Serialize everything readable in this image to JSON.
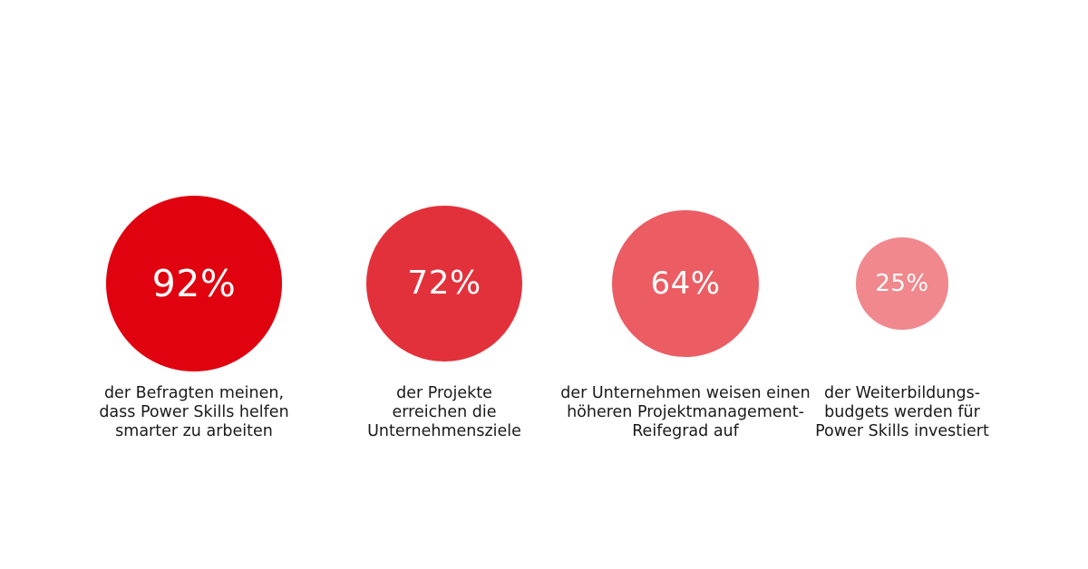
{
  "chart_data": {
    "type": "bubble",
    "unit": "%",
    "items": [
      {
        "value": 92,
        "label": "92%",
        "color": "#e0020f",
        "caption_lines": [
          "der Befragten meinen,",
          "dass Power Skills helfen",
          "smarter zu arbeiten"
        ]
      },
      {
        "value": 72,
        "label": "72%",
        "color": "#e3313b",
        "caption_lines": [
          "der Projekte",
          "erreichen die",
          "Unternehmensziele"
        ]
      },
      {
        "value": 64,
        "label": "64%",
        "color": "#eb5c63",
        "caption_lines": [
          "der Unternehmen weisen einen",
          "höheren Projektmanagement-",
          "Reifegrad auf"
        ]
      },
      {
        "value": 25,
        "label": "25%",
        "color": "#f0888d",
        "caption_lines": [
          "der Weiterbildungs-",
          "budgets werden für",
          "Power Skills investiert"
        ]
      }
    ]
  }
}
